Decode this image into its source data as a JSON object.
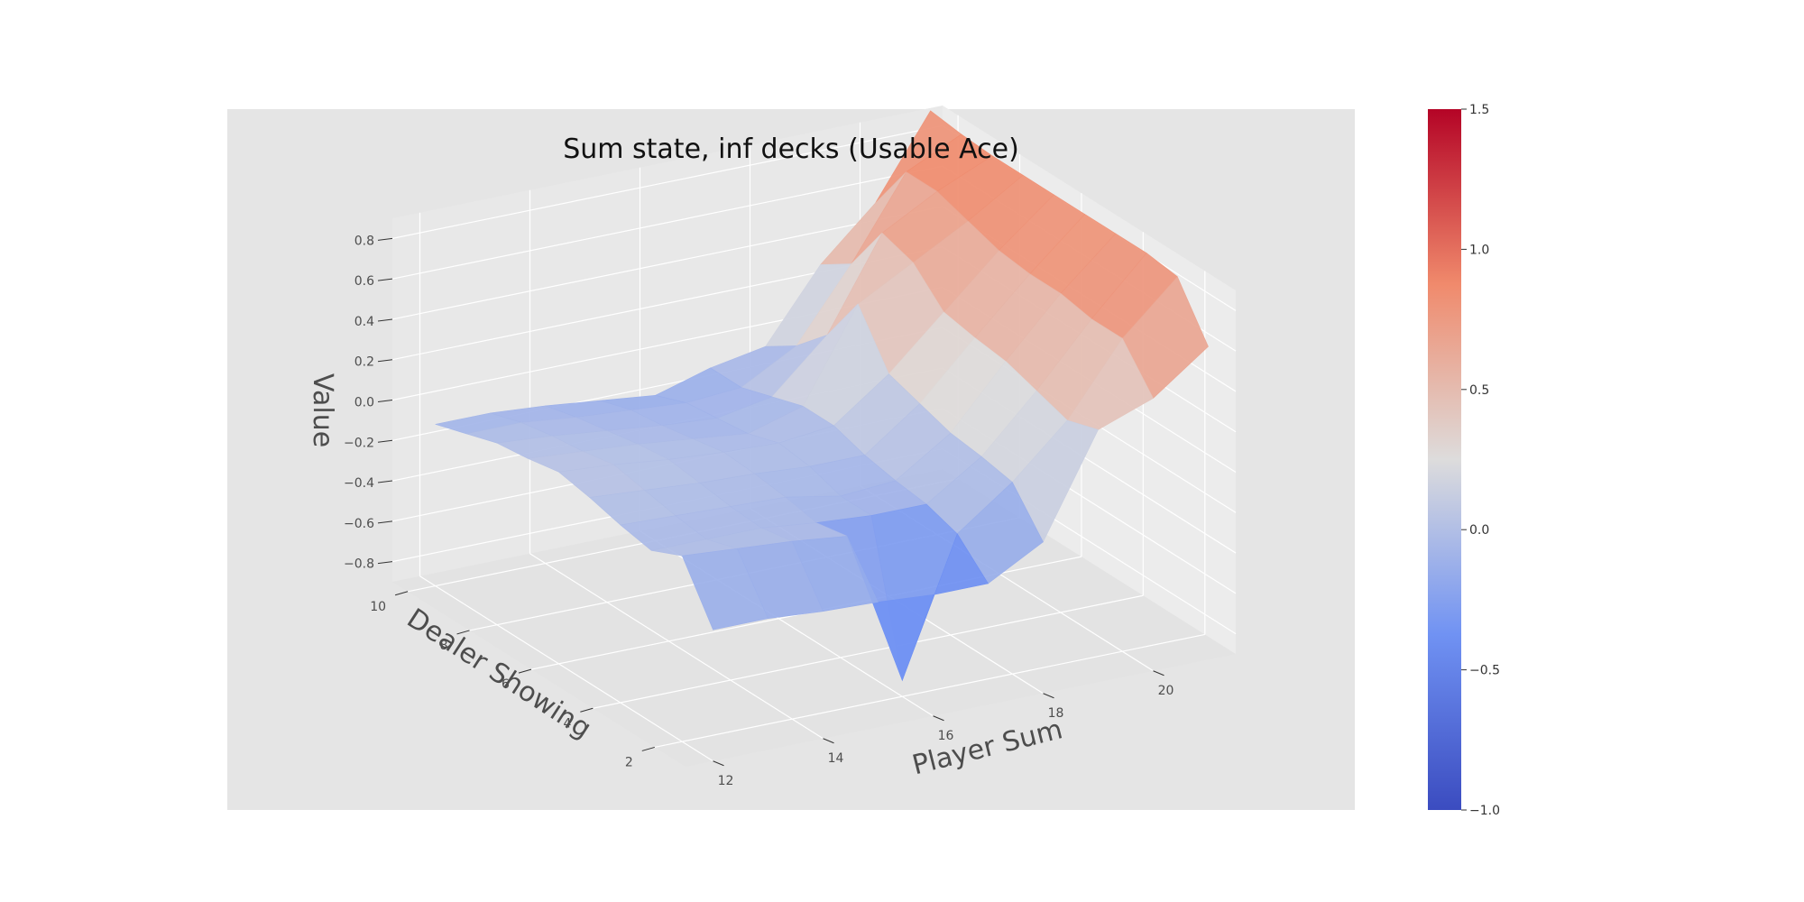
{
  "chart_data": {
    "type": "surface3d",
    "title": "Sum state, inf decks (Usable Ace)",
    "xlabel": "Player Sum",
    "ylabel": "Dealer Showing",
    "zlabel": "Value",
    "x": [
      12,
      13,
      14,
      15,
      16,
      17,
      18,
      19,
      20,
      21
    ],
    "y": [
      1,
      2,
      3,
      4,
      5,
      6,
      7,
      8,
      9,
      10
    ],
    "x_ticks": [
      "12",
      "14",
      "16",
      "18",
      "20"
    ],
    "y_ticks": [
      "2",
      "4",
      "6",
      "8",
      "10"
    ],
    "z_ticks": [
      "−0.8",
      "−0.6",
      "−0.4",
      "−0.2",
      "0.0",
      "0.2",
      "0.4",
      "0.6",
      "0.8"
    ],
    "z_range": [
      -0.9,
      0.9
    ],
    "values": [
      [
        -0.25,
        -0.25,
        -0.27,
        -0.28,
        -0.3,
        -0.3,
        -0.15,
        0.35,
        0.45,
        0.65
      ],
      [
        0.02,
        0.0,
        -0.02,
        -0.05,
        -0.82,
        -0.15,
        0.05,
        0.3,
        0.65,
        0.9
      ],
      [
        -0.05,
        -0.05,
        -0.05,
        -0.08,
        -0.1,
        -0.1,
        0.08,
        0.35,
        0.65,
        0.92
      ],
      [
        -0.02,
        -0.03,
        -0.04,
        -0.05,
        -0.1,
        -0.08,
        0.1,
        0.4,
        0.68,
        0.92
      ],
      [
        0.02,
        0.0,
        -0.02,
        -0.03,
        -0.05,
        -0.05,
        0.15,
        0.42,
        0.68,
        0.92
      ],
      [
        0.05,
        0.03,
        0.0,
        -0.02,
        -0.03,
        0.0,
        0.2,
        0.45,
        0.7,
        0.92
      ],
      [
        0.02,
        0.0,
        -0.02,
        -0.05,
        -0.08,
        0.0,
        0.45,
        0.6,
        0.75,
        0.92
      ],
      [
        0.0,
        -0.02,
        -0.05,
        -0.08,
        -0.1,
        -0.05,
        0.2,
        0.65,
        0.8,
        0.92
      ],
      [
        -0.05,
        -0.05,
        -0.08,
        -0.1,
        -0.12,
        -0.1,
        0.05,
        0.4,
        0.8,
        0.93
      ],
      [
        -0.1,
        -0.1,
        -0.12,
        -0.15,
        -0.18,
        -0.1,
        -0.05,
        0.3,
        0.55,
        0.95
      ]
    ],
    "colormap": "coolwarm",
    "colorbar": {
      "min": -1.0,
      "max": 1.5,
      "ticks": [
        {
          "value": 1.5,
          "label": "1.5"
        },
        {
          "value": 1.0,
          "label": "1.0"
        },
        {
          "value": 0.5,
          "label": "0.5"
        },
        {
          "value": 0.0,
          "label": "0.0"
        },
        {
          "value": -0.5,
          "label": "−0.5"
        },
        {
          "value": -1.0,
          "label": "−1.0"
        }
      ]
    },
    "background": "#e5e5e5",
    "grid": true
  }
}
